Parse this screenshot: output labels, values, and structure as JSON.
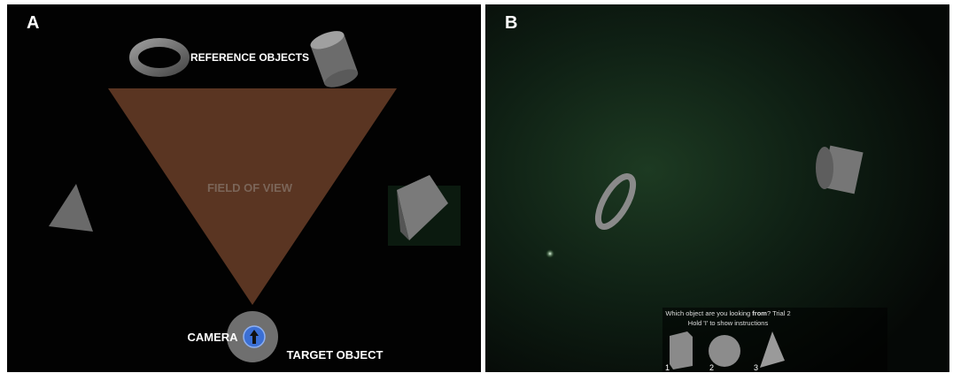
{
  "panel_a": {
    "label": "A",
    "reference_objects": "REFERENCE OBJECTS",
    "field_of_view": "FIELD OF VIEW",
    "camera": "CAMERA",
    "target_object": "TARGET OBJECT"
  },
  "panel_b": {
    "label": "B",
    "prompt": {
      "before": "Which object are you looking ",
      "emphasis": "from",
      "after": "? Trial 2"
    },
    "hint": "Hold 'I' to show instructions",
    "choices": [
      "1",
      "2",
      "3"
    ]
  }
}
